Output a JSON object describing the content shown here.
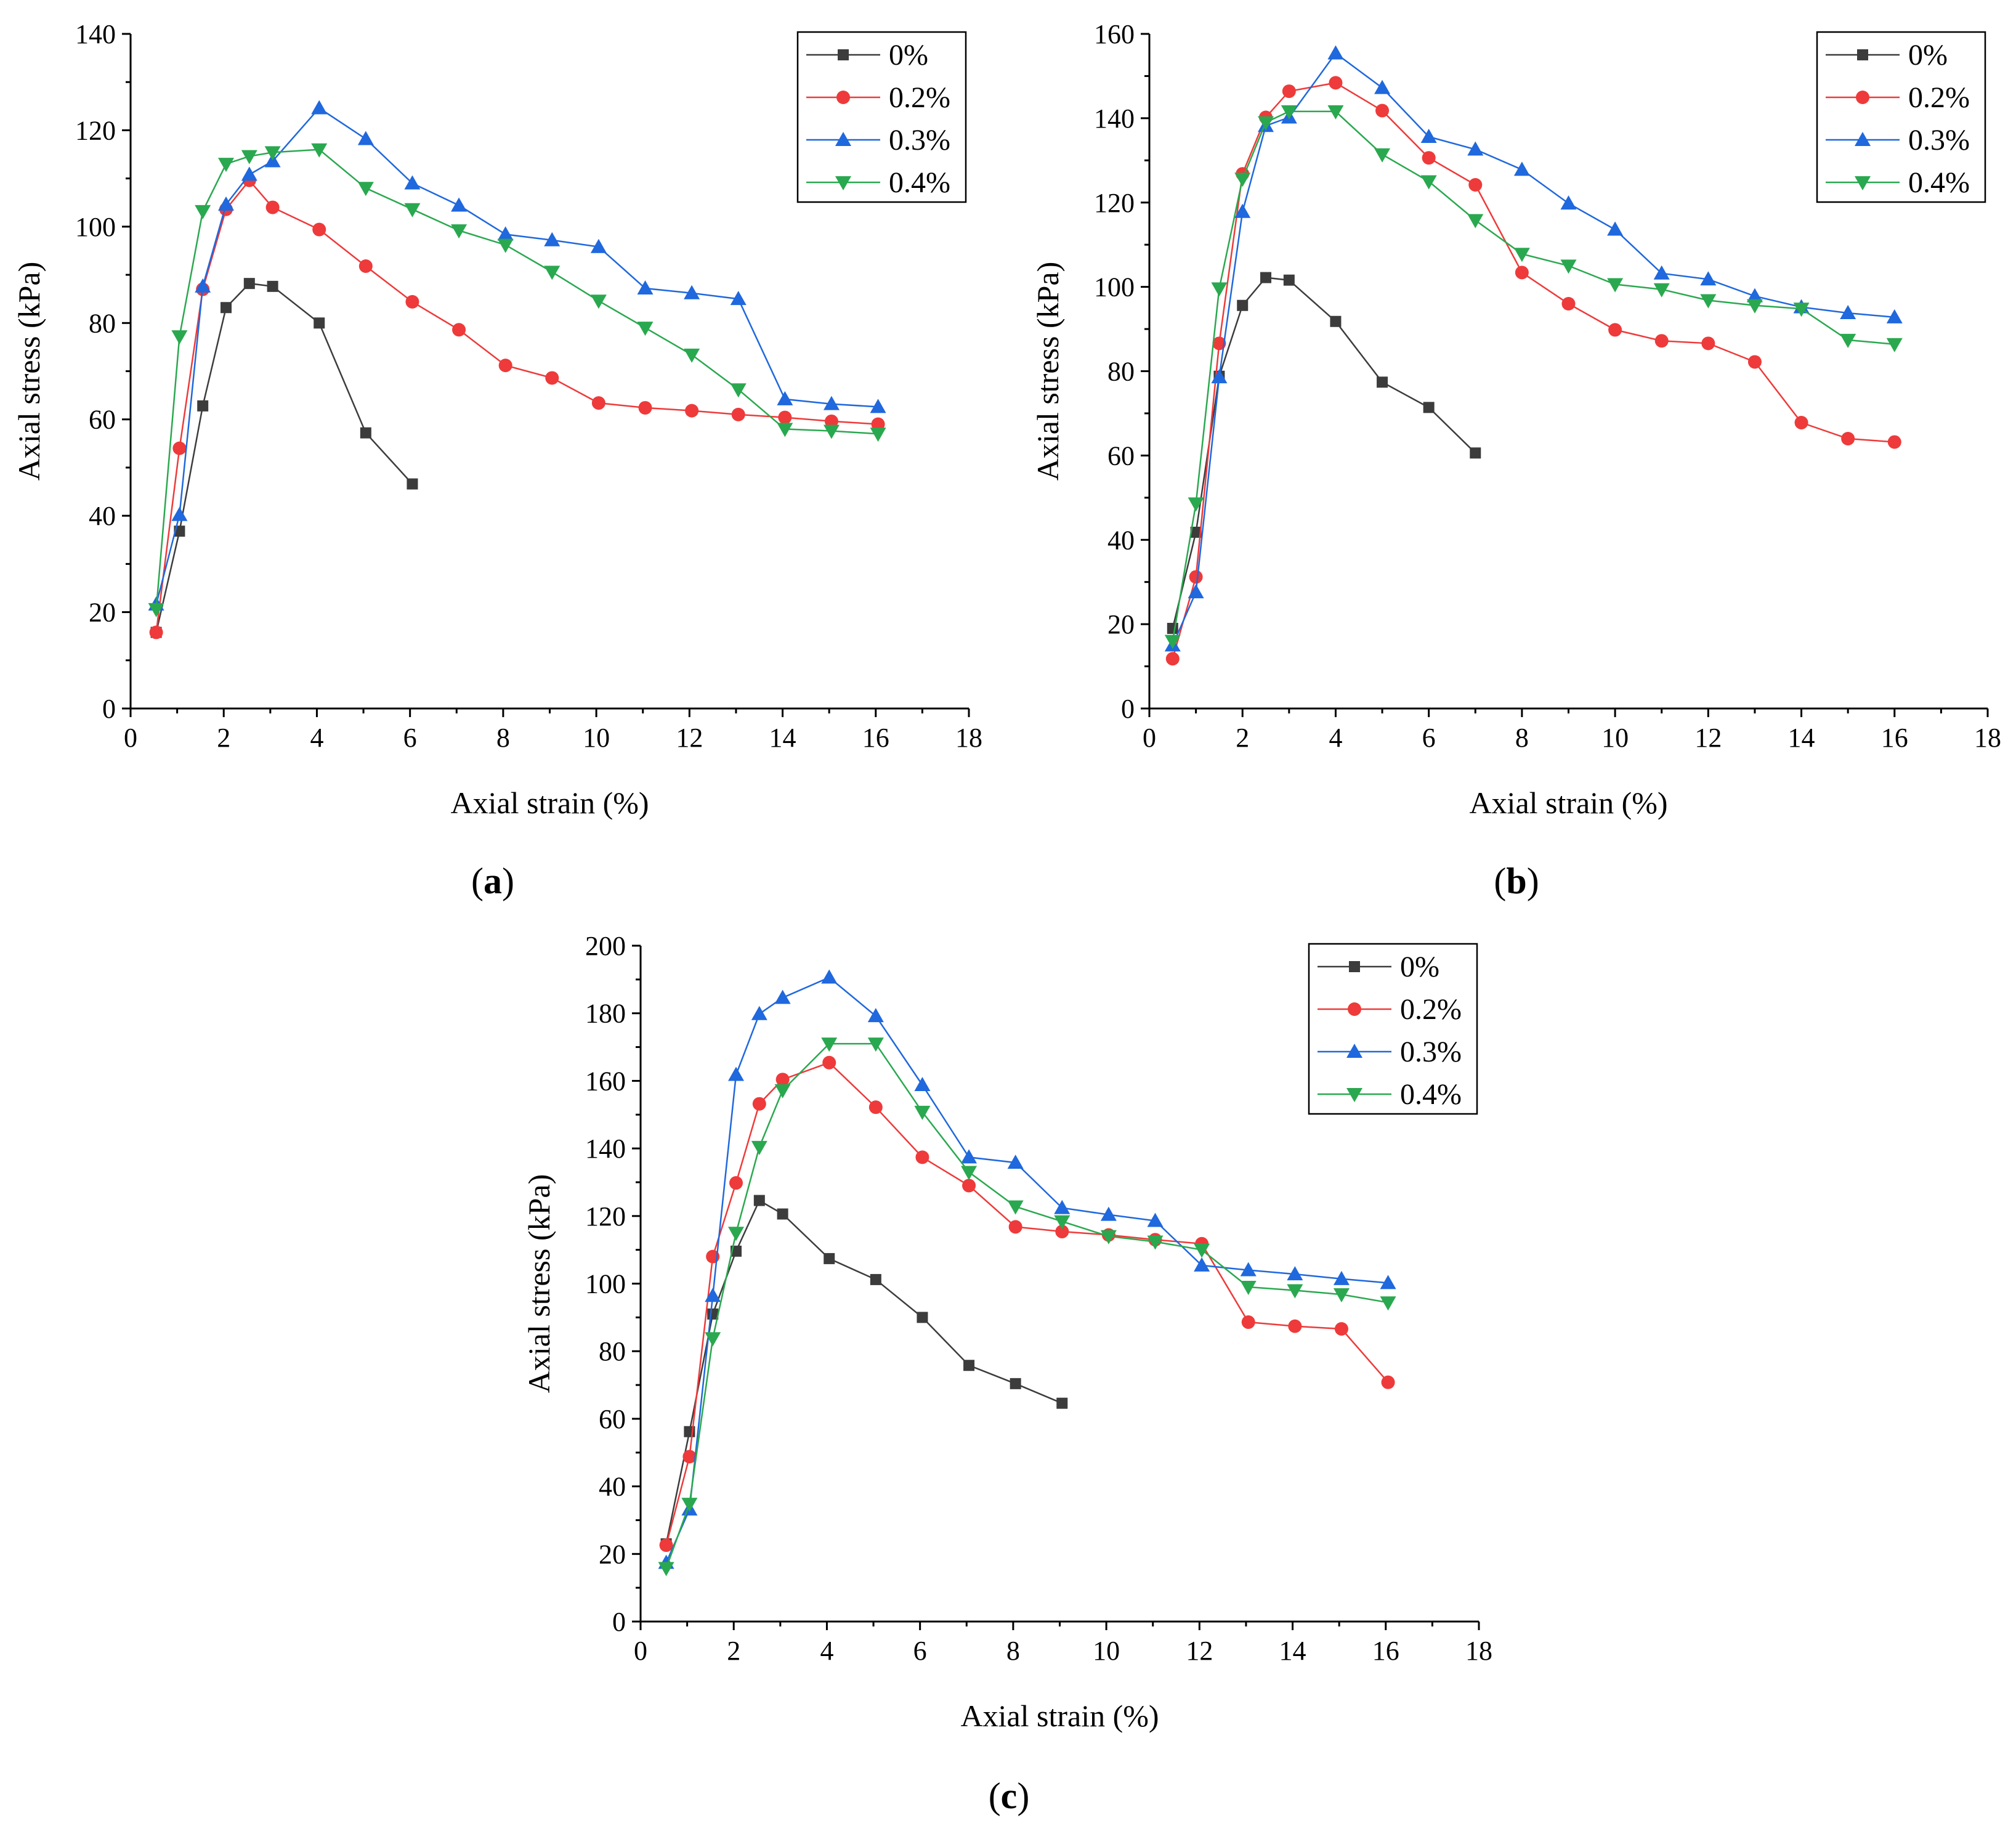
{
  "colors": {
    "0%": "#3c3c3c",
    "0.2%": "#ee3a3a",
    "0.3%": "#1f68dd",
    "0.4%": "#2aa84f"
  },
  "markers": {
    "0%": "square",
    "0.2%": "circle",
    "0.3%": "triangle-up",
    "0.4%": "triangle-down"
  },
  "chart_data": [
    {
      "type": "line",
      "panel_label": "a",
      "xlabel": "Axial strain (%)",
      "ylabel": "Axial stress (kPa)",
      "xlim": [
        0,
        18
      ],
      "ylim": [
        0,
        140
      ],
      "xticks": [
        0,
        2,
        4,
        6,
        8,
        10,
        12,
        14,
        16,
        18
      ],
      "yticks": [
        0,
        20,
        40,
        60,
        80,
        100,
        120,
        140
      ],
      "legend_position": "top-right",
      "series": [
        {
          "name": "0%",
          "x": [
            0.55,
            1.05,
            1.55,
            2.05,
            2.55,
            3.05,
            4.05,
            5.05,
            6.05
          ],
          "y": [
            15.8,
            36.8,
            62.8,
            83.2,
            88.2,
            87.6,
            80.0,
            57.2,
            46.6
          ]
        },
        {
          "name": "0.2%",
          "x": [
            0.55,
            1.05,
            1.55,
            2.05,
            2.55,
            3.05,
            4.05,
            5.05,
            6.05,
            7.05,
            8.05,
            9.05,
            10.05,
            11.05,
            12.05,
            13.05,
            14.05,
            15.05,
            16.05
          ],
          "y": [
            15.8,
            54.0,
            87.0,
            103.6,
            109.6,
            104.0,
            99.4,
            91.8,
            84.4,
            78.6,
            71.2,
            68.6,
            63.4,
            62.4,
            61.8,
            61.0,
            60.4,
            59.6,
            59.0
          ]
        },
        {
          "name": "0.3%",
          "x": [
            0.55,
            1.05,
            1.55,
            2.05,
            2.55,
            3.05,
            4.05,
            5.05,
            6.05,
            7.05,
            8.05,
            9.05,
            10.05,
            11.05,
            12.05,
            13.05,
            14.05,
            15.05,
            16.05
          ],
          "y": [
            21.6,
            40.2,
            87.6,
            104.6,
            110.8,
            113.6,
            124.6,
            118.2,
            109.0,
            104.4,
            98.4,
            97.2,
            95.8,
            87.2,
            86.2,
            85.0,
            64.2,
            63.2,
            62.6
          ]
        },
        {
          "name": "0.4%",
          "x": [
            0.55,
            1.05,
            1.55,
            2.05,
            2.55,
            3.05,
            4.05,
            5.05,
            6.05,
            7.05,
            8.05,
            9.05,
            10.05,
            11.05,
            12.05,
            13.05,
            14.05,
            15.05,
            16.05
          ],
          "y": [
            20.6,
            77.2,
            103.2,
            113.0,
            114.6,
            115.4,
            116.0,
            108.0,
            103.6,
            99.2,
            96.2,
            90.6,
            84.6,
            79.0,
            73.4,
            66.2,
            58.0,
            57.6,
            57.0
          ]
        }
      ]
    },
    {
      "type": "line",
      "panel_label": "b",
      "xlabel": "Axial strain (%)",
      "ylabel": "Axial stress (kPa)",
      "xlim": [
        0,
        18
      ],
      "ylim": [
        0,
        160
      ],
      "xticks": [
        0,
        2,
        4,
        6,
        8,
        10,
        12,
        14,
        16,
        18
      ],
      "yticks": [
        0,
        20,
        40,
        60,
        80,
        100,
        120,
        140,
        160
      ],
      "legend_position": "top-right",
      "series": [
        {
          "name": "0%",
          "x": [
            0.5,
            1.0,
            1.5,
            2.0,
            2.5,
            3.0,
            4.0,
            5.0,
            6.0,
            7.0
          ],
          "y": [
            19.0,
            41.8,
            78.8,
            95.6,
            102.2,
            101.6,
            91.8,
            77.4,
            71.4,
            60.6
          ]
        },
        {
          "name": "0.2%",
          "x": [
            0.5,
            1.0,
            1.5,
            2.0,
            2.5,
            3.0,
            4.0,
            5.0,
            6.0,
            7.0,
            8.0,
            9.0,
            10.0,
            11.0,
            12.0,
            13.0,
            14.0,
            15.0,
            16.0
          ],
          "y": [
            11.8,
            31.2,
            86.6,
            126.8,
            140.2,
            146.4,
            148.4,
            141.8,
            130.6,
            124.2,
            103.4,
            96.0,
            89.8,
            87.2,
            86.6,
            82.2,
            67.8,
            64.0,
            63.2
          ]
        },
        {
          "name": "0.3%",
          "x": [
            0.5,
            1.0,
            1.5,
            2.0,
            2.5,
            3.0,
            4.0,
            5.0,
            6.0,
            7.0,
            8.0,
            9.0,
            10.0,
            11.0,
            12.0,
            13.0,
            14.0,
            15.0,
            16.0
          ],
          "y": [
            15.0,
            27.6,
            78.6,
            117.8,
            138.2,
            140.2,
            155.4,
            147.2,
            135.6,
            132.6,
            127.8,
            119.8,
            113.6,
            103.2,
            101.8,
            97.8,
            95.2,
            93.8,
            92.8
          ]
        },
        {
          "name": "0.4%",
          "x": [
            0.5,
            1.0,
            1.5,
            2.0,
            2.5,
            3.0,
            4.0,
            5.0,
            6.0,
            7.0,
            8.0,
            9.0,
            10.0,
            11.0,
            12.0,
            13.0,
            14.0,
            15.0,
            16.0
          ],
          "y": [
            16.0,
            48.6,
            99.6,
            125.6,
            139.0,
            141.6,
            141.6,
            131.4,
            125.0,
            115.8,
            107.8,
            105.0,
            100.6,
            99.4,
            96.8,
            95.6,
            94.8,
            87.4,
            86.4
          ]
        }
      ]
    },
    {
      "type": "line",
      "panel_label": "c",
      "xlabel": "Axial strain (%)",
      "ylabel": "Axial stress (kPa)",
      "xlim": [
        0,
        18
      ],
      "ylim": [
        0,
        200
      ],
      "xticks": [
        0,
        2,
        4,
        6,
        8,
        10,
        12,
        14,
        16,
        18
      ],
      "yticks": [
        0,
        20,
        40,
        60,
        80,
        100,
        120,
        140,
        160,
        180,
        200
      ],
      "legend_position": "top-right",
      "series": [
        {
          "name": "0%",
          "x": [
            0.55,
            1.05,
            1.55,
            2.05,
            2.55,
            3.05,
            4.05,
            5.05,
            6.05,
            7.05,
            8.05,
            9.05
          ],
          "y": [
            23.0,
            56.2,
            91.0,
            109.6,
            124.6,
            120.6,
            107.4,
            101.2,
            90.0,
            75.8,
            70.4,
            64.6
          ]
        },
        {
          "name": "0.2%",
          "x": [
            0.55,
            1.05,
            1.55,
            2.05,
            2.55,
            3.05,
            4.05,
            5.05,
            6.05,
            7.05,
            8.05,
            9.05,
            10.05,
            11.05,
            12.05,
            13.05,
            14.05,
            15.05,
            16.05
          ],
          "y": [
            22.6,
            48.8,
            108.0,
            129.8,
            153.2,
            160.4,
            165.4,
            152.2,
            137.4,
            129.0,
            116.8,
            115.4,
            114.4,
            113.0,
            111.8,
            88.6,
            87.4,
            86.6,
            70.8
          ]
        },
        {
          "name": "0.3%",
          "x": [
            0.55,
            1.05,
            1.55,
            2.05,
            2.55,
            3.05,
            4.05,
            5.05,
            6.05,
            7.05,
            8.05,
            9.05,
            10.05,
            11.05,
            12.05,
            13.05,
            14.05,
            15.05,
            16.05
          ],
          "y": [
            17.4,
            33.2,
            96.4,
            161.8,
            179.8,
            184.6,
            190.6,
            179.2,
            158.8,
            137.4,
            135.8,
            122.4,
            120.4,
            118.6,
            105.4,
            104.0,
            102.8,
            101.4,
            100.2
          ]
        },
        {
          "name": "0.4%",
          "x": [
            0.55,
            1.05,
            1.55,
            2.05,
            2.55,
            3.05,
            4.05,
            5.05,
            6.05,
            7.05,
            8.05,
            9.05,
            10.05,
            11.05,
            12.05,
            13.05,
            14.05,
            15.05,
            16.05
          ],
          "y": [
            15.8,
            34.8,
            83.8,
            115.0,
            140.4,
            157.2,
            171.0,
            171.0,
            150.8,
            133.0,
            122.8,
            118.4,
            114.0,
            112.4,
            110.0,
            99.0,
            98.0,
            96.8,
            94.4
          ]
        }
      ]
    }
  ]
}
